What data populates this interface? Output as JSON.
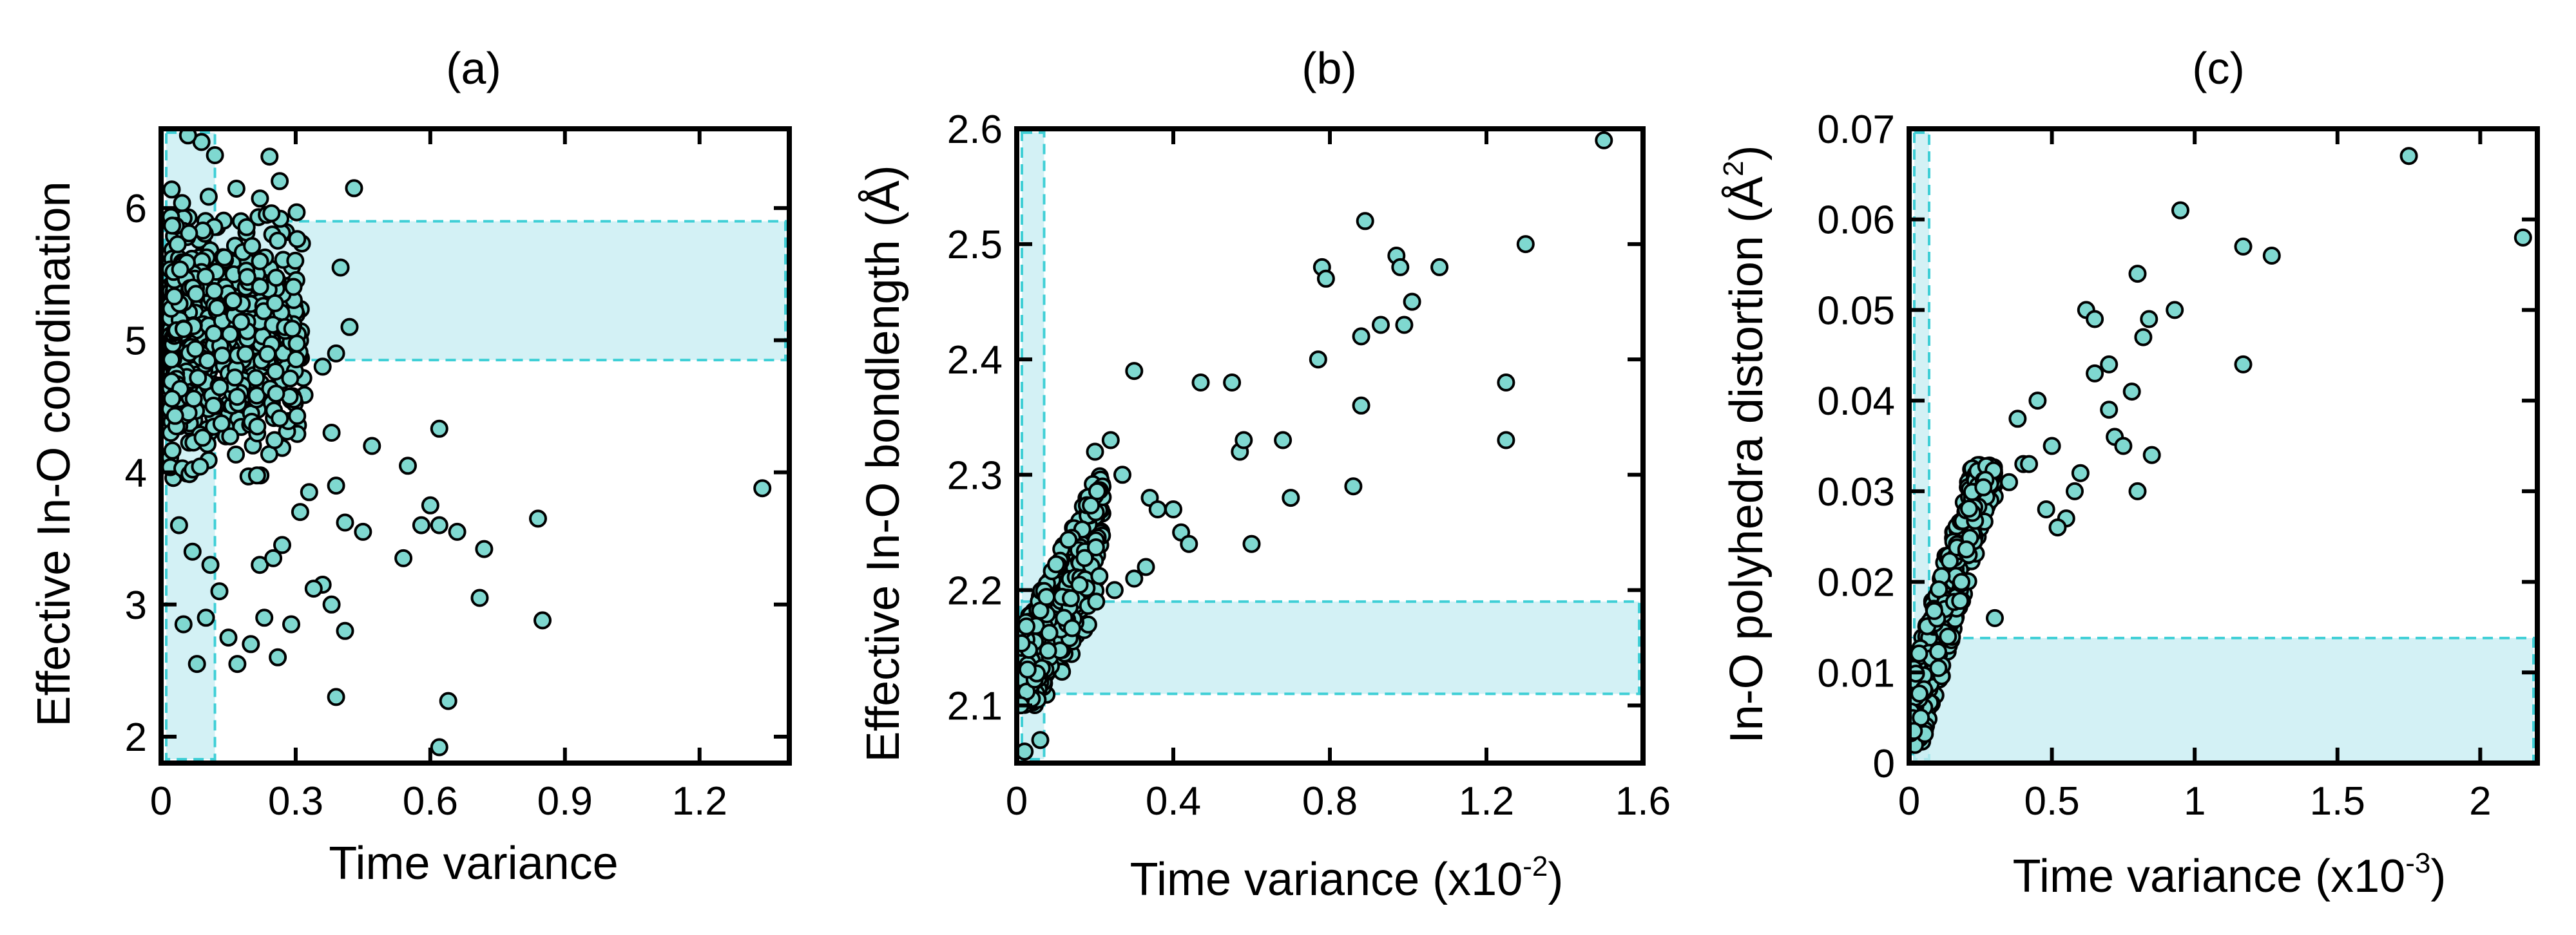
{
  "style": {
    "point_fill": "#7fd8d0",
    "point_stroke": "#000000",
    "band_fill": "#c8eef2",
    "band_stroke": "#3fcfd6",
    "axis_color": "#000000"
  },
  "chart_data": [
    {
      "type": "scatter",
      "title": "(a)",
      "xlabel": "Time variance",
      "ylabel": "Effective In-O coordination",
      "xlim": [
        0,
        1.4
      ],
      "ylim": [
        1.8,
        6.6
      ],
      "xticks": [
        0,
        0.3,
        0.6,
        0.9,
        1.2
      ],
      "xtick_labels": [
        "0",
        "0.3",
        "0.6",
        "0.9",
        "1.2"
      ],
      "yticks": [
        2,
        3,
        4,
        5,
        6
      ],
      "ytick_labels": [
        "2",
        "3",
        "4",
        "5",
        "6"
      ],
      "bands": [
        {
          "orientation": "vertical",
          "from": 0,
          "to": 0.12
        },
        {
          "orientation": "horizontal",
          "from": 4.85,
          "to": 5.9
        }
      ],
      "cluster": {
        "x_range": [
          0.02,
          0.32
        ],
        "y_range": [
          3.8,
          6.3
        ],
        "count": 620
      },
      "outliers": [
        [
          0.43,
          6.15
        ],
        [
          0.4,
          5.55
        ],
        [
          0.42,
          5.1
        ],
        [
          0.39,
          4.9
        ],
        [
          0.36,
          4.8
        ],
        [
          0.38,
          4.3
        ],
        [
          0.55,
          4.05
        ],
        [
          0.62,
          4.33
        ],
        [
          0.6,
          3.75
        ],
        [
          0.58,
          3.6
        ],
        [
          0.62,
          3.6
        ],
        [
          0.66,
          3.55
        ],
        [
          0.72,
          3.42
        ],
        [
          0.84,
          3.65
        ],
        [
          0.85,
          2.88
        ],
        [
          0.71,
          3.05
        ],
        [
          0.54,
          3.35
        ],
        [
          0.45,
          3.55
        ],
        [
          0.41,
          3.62
        ],
        [
          0.39,
          3.9
        ],
        [
          0.36,
          3.15
        ],
        [
          0.34,
          3.12
        ],
        [
          0.38,
          3.0
        ],
        [
          0.41,
          2.8
        ],
        [
          0.39,
          2.3
        ],
        [
          0.64,
          2.27
        ],
        [
          0.62,
          1.92
        ],
        [
          0.29,
          2.85
        ],
        [
          0.27,
          3.45
        ],
        [
          0.31,
          3.7
        ],
        [
          0.26,
          2.6
        ],
        [
          0.23,
          2.9
        ],
        [
          0.2,
          2.7
        ],
        [
          0.17,
          2.55
        ],
        [
          0.15,
          2.75
        ],
        [
          0.1,
          2.9
        ],
        [
          0.13,
          3.1
        ],
        [
          0.08,
          2.55
        ],
        [
          0.05,
          2.85
        ],
        [
          0.11,
          3.3
        ],
        [
          0.33,
          3.85
        ],
        [
          0.47,
          4.2
        ],
        [
          1.34,
          3.88
        ],
        [
          0.09,
          6.5
        ],
        [
          0.12,
          6.4
        ],
        [
          0.06,
          6.55
        ],
        [
          0.04,
          3.6
        ],
        [
          0.07,
          3.4
        ],
        [
          0.22,
          3.3
        ],
        [
          0.25,
          3.35
        ]
      ]
    },
    {
      "type": "scatter",
      "title": "(b)",
      "xlabel": "Time variance (x10",
      "xlabel_exponent": "-2",
      "xlabel_suffix": ")",
      "ylabel": "Effective In-O bondlength (Å)",
      "xlim": [
        0,
        1.6
      ],
      "ylim": [
        2.05,
        2.6
      ],
      "xticks": [
        0,
        0.4,
        0.8,
        1.2,
        1.6
      ],
      "xtick_labels": [
        "0",
        "0.4",
        "0.8",
        "1.2",
        "1.6"
      ],
      "yticks": [
        2.1,
        2.2,
        2.3,
        2.4,
        2.5,
        2.6
      ],
      "ytick_labels": [
        "2.1",
        "2.2",
        "2.3",
        "2.4",
        "2.5",
        "2.6"
      ],
      "bands": [
        {
          "orientation": "vertical",
          "from": 0,
          "to": 0.07
        },
        {
          "orientation": "horizontal",
          "from": 2.11,
          "to": 2.19
        }
      ],
      "cluster": {
        "x_range": [
          0.01,
          0.22
        ],
        "y_range": [
          2.1,
          2.31
        ],
        "count": 520
      },
      "outliers": [
        [
          0.3,
          2.39
        ],
        [
          0.24,
          2.33
        ],
        [
          0.27,
          2.3
        ],
        [
          0.34,
          2.28
        ],
        [
          0.36,
          2.27
        ],
        [
          0.4,
          2.27
        ],
        [
          0.42,
          2.25
        ],
        [
          0.44,
          2.24
        ],
        [
          0.47,
          2.38
        ],
        [
          0.55,
          2.38
        ],
        [
          0.57,
          2.32
        ],
        [
          0.58,
          2.33
        ],
        [
          0.6,
          2.24
        ],
        [
          0.68,
          2.33
        ],
        [
          0.7,
          2.28
        ],
        [
          0.77,
          2.4
        ],
        [
          0.78,
          2.48
        ],
        [
          0.79,
          2.47
        ],
        [
          0.86,
          2.29
        ],
        [
          0.88,
          2.36
        ],
        [
          0.88,
          2.42
        ],
        [
          0.89,
          2.52
        ],
        [
          0.93,
          2.43
        ],
        [
          0.97,
          2.49
        ],
        [
          0.98,
          2.48
        ],
        [
          0.99,
          2.43
        ],
        [
          1.01,
          2.45
        ],
        [
          1.08,
          2.48
        ],
        [
          1.25,
          2.38
        ],
        [
          1.25,
          2.33
        ],
        [
          1.3,
          2.5
        ],
        [
          1.5,
          2.59
        ],
        [
          0.3,
          2.21
        ],
        [
          0.25,
          2.2
        ],
        [
          0.2,
          2.32
        ],
        [
          0.02,
          2.06
        ],
        [
          0.06,
          2.07
        ],
        [
          0.33,
          2.22
        ]
      ]
    },
    {
      "type": "scatter",
      "title": "(c)",
      "xlabel": "Time variance (x10",
      "xlabel_exponent": "-3",
      "xlabel_suffix": ")",
      "ylabel": "In-O polyhedra distortion (Å",
      "ylabel_exponent": "2",
      "ylabel_suffix": ")",
      "xlim": [
        0,
        2.2
      ],
      "ylim": [
        0,
        0.07
      ],
      "xticks": [
        0,
        0.5,
        1,
        1.5,
        2
      ],
      "xtick_labels": [
        "0",
        "0.5",
        "1",
        "1.5",
        "2"
      ],
      "yticks": [
        0,
        0.01,
        0.02,
        0.03,
        0.04,
        0.05,
        0.06,
        0.07
      ],
      "ytick_labels": [
        "0",
        "0.01",
        "0.02",
        "0.03",
        "0.04",
        "0.05",
        "0.06",
        "0.07"
      ],
      "bands": [
        {
          "orientation": "vertical",
          "from": 0,
          "to": 0.07
        },
        {
          "orientation": "horizontal",
          "from": 0,
          "to": 0.0138
        }
      ],
      "cluster": {
        "x_range": [
          0.0,
          0.3
        ],
        "y_range": [
          0.002,
          0.033
        ],
        "count": 480,
        "trend": true
      },
      "outliers": [
        [
          0.35,
          0.031
        ],
        [
          0.4,
          0.033
        ],
        [
          0.45,
          0.04
        ],
        [
          0.5,
          0.035
        ],
        [
          0.48,
          0.028
        ],
        [
          0.55,
          0.027
        ],
        [
          0.6,
          0.032
        ],
        [
          0.62,
          0.05
        ],
        [
          0.65,
          0.049
        ],
        [
          0.65,
          0.043
        ],
        [
          0.7,
          0.044
        ],
        [
          0.7,
          0.039
        ],
        [
          0.72,
          0.036
        ],
        [
          0.75,
          0.035
        ],
        [
          0.78,
          0.041
        ],
        [
          0.8,
          0.054
        ],
        [
          0.82,
          0.047
        ],
        [
          0.84,
          0.049
        ],
        [
          0.8,
          0.03
        ],
        [
          0.85,
          0.034
        ],
        [
          0.93,
          0.05
        ],
        [
          0.95,
          0.061
        ],
        [
          1.17,
          0.057
        ],
        [
          1.17,
          0.044
        ],
        [
          1.27,
          0.056
        ],
        [
          1.75,
          0.067
        ],
        [
          2.15,
          0.058
        ],
        [
          0.38,
          0.038
        ],
        [
          0.42,
          0.033
        ],
        [
          0.58,
          0.03
        ],
        [
          0.52,
          0.026
        ],
        [
          0.3,
          0.016
        ]
      ]
    }
  ]
}
